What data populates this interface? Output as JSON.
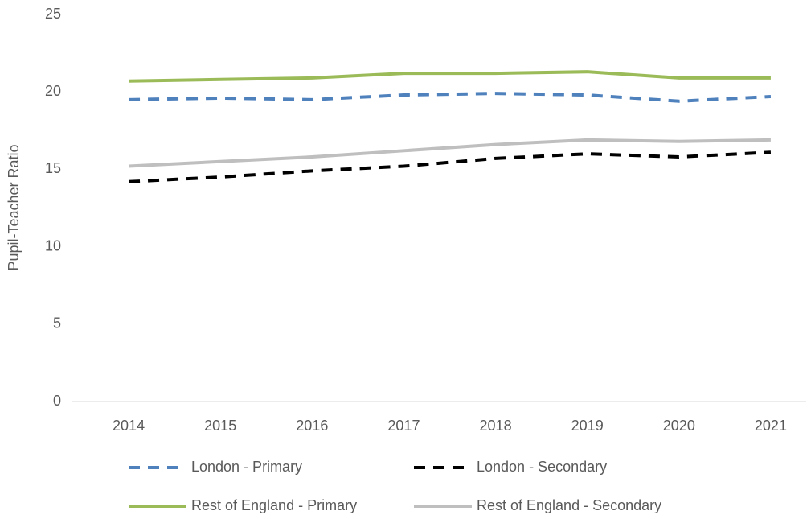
{
  "chart_data": {
    "type": "line",
    "y_axis_label": "Pupil-Teacher Ratio",
    "categories": [
      "2014",
      "2015",
      "2016",
      "2017",
      "2018",
      "2019",
      "2020",
      "2021"
    ],
    "series": [
      {
        "name": "London - Primary",
        "color": "#4f81bd",
        "line_style": "dashed",
        "values": [
          19.5,
          19.6,
          19.5,
          19.8,
          19.9,
          19.8,
          19.4,
          19.7
        ]
      },
      {
        "name": "London - Secondary",
        "color": "#000000",
        "line_style": "dashed",
        "values": [
          14.2,
          14.5,
          14.9,
          15.2,
          15.7,
          16.0,
          15.8,
          16.1
        ]
      },
      {
        "name": "Rest of England - Primary",
        "color": "#9bbb59",
        "line_style": "solid",
        "values": [
          20.7,
          20.8,
          20.9,
          21.2,
          21.2,
          21.3,
          20.9,
          20.9
        ]
      },
      {
        "name": "Rest of England - Secondary",
        "color": "#bfbfbf",
        "line_style": "solid",
        "values": [
          15.2,
          15.5,
          15.8,
          16.2,
          16.6,
          16.9,
          16.8,
          16.9
        ]
      }
    ],
    "ylim": [
      0,
      25
    ],
    "yticks": [
      0,
      5,
      10,
      15,
      20,
      25
    ],
    "grid": false,
    "legend": "bottom"
  }
}
